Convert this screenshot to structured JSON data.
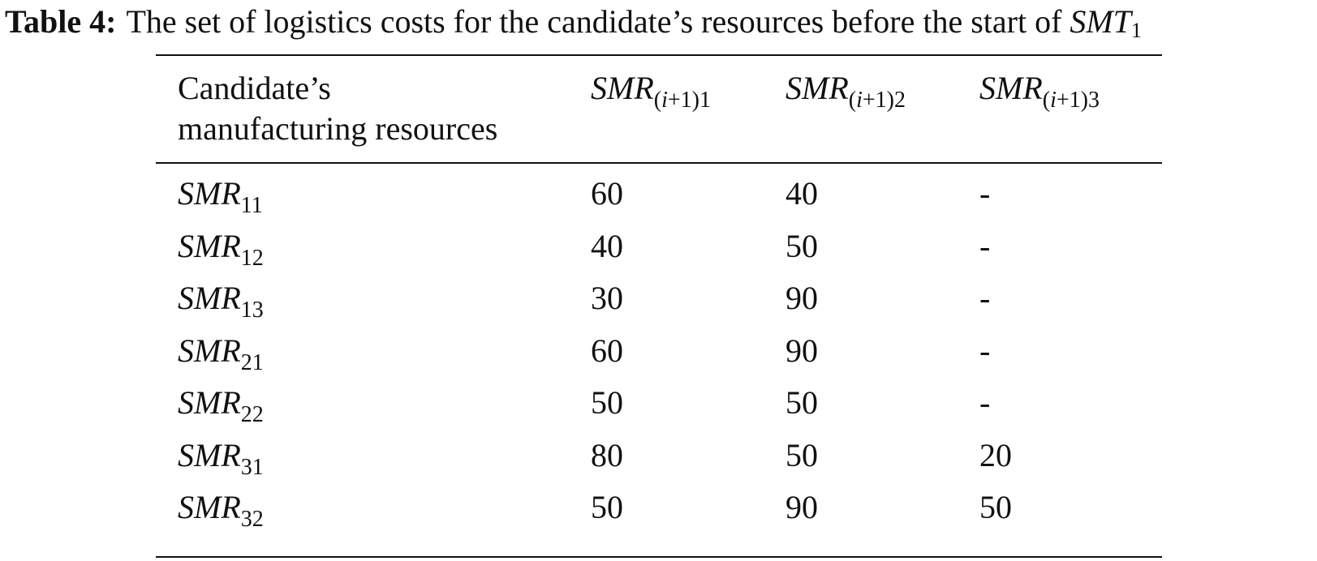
{
  "caption": {
    "label": "Table 4:",
    "text": "The set of logistics costs for the candidate’s resources before the start of",
    "symbol": "SMT",
    "symbol_sub": "1"
  },
  "table": {
    "header": {
      "col0_line1": "Candidate’s",
      "col0_line2": "manufacturing resources",
      "col1": {
        "base": "SMR",
        "sub": "(i+1)1"
      },
      "col2": {
        "base": "SMR",
        "sub": "(i+1)2"
      },
      "col3": {
        "base": "SMR",
        "sub": "(i+1)3"
      }
    },
    "rows": [
      {
        "base": "SMR",
        "sub": "11",
        "c1": "60",
        "c2": "40",
        "c3": "-"
      },
      {
        "base": "SMR",
        "sub": "12",
        "c1": "40",
        "c2": "50",
        "c3": "-"
      },
      {
        "base": "SMR",
        "sub": "13",
        "c1": "30",
        "c2": "90",
        "c3": "-"
      },
      {
        "base": "SMR",
        "sub": "21",
        "c1": "60",
        "c2": "90",
        "c3": "-"
      },
      {
        "base": "SMR",
        "sub": "22",
        "c1": "50",
        "c2": "50",
        "c3": "-"
      },
      {
        "base": "SMR",
        "sub": "31",
        "c1": "80",
        "c2": "50",
        "c3": "20"
      },
      {
        "base": "SMR",
        "sub": "32",
        "c1": "50",
        "c2": "90",
        "c3": "50"
      }
    ]
  }
}
